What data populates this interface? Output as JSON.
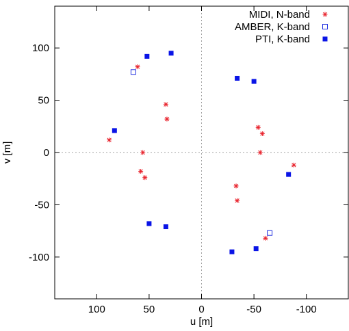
{
  "chart_data": {
    "type": "scatter",
    "xlabel": "u [m]",
    "ylabel": "v [m]",
    "xlim": [
      140,
      -140
    ],
    "ylim": [
      -140,
      140
    ],
    "xticks": [
      100,
      50,
      0,
      -50,
      -100
    ],
    "yticks": [
      100,
      50,
      0,
      -50,
      -100
    ],
    "zero_lines": true,
    "legend_position": "top-right",
    "series": [
      {
        "name": "MIDI, N-band",
        "marker": "asterisk",
        "color": "#e8202a",
        "points": [
          [
            61,
            82
          ],
          [
            -61,
            -82
          ],
          [
            34,
            46
          ],
          [
            -34,
            -46
          ],
          [
            33,
            32
          ],
          [
            -33,
            -32
          ],
          [
            -54,
            24
          ],
          [
            54,
            -24
          ],
          [
            -58,
            18
          ],
          [
            58,
            -18
          ],
          [
            88,
            12
          ],
          [
            -88,
            -12
          ],
          [
            56,
            0
          ],
          [
            -56,
            0
          ]
        ]
      },
      {
        "name": "AMBER, K-band",
        "marker": "open-square",
        "color": "#1f2ee0",
        "points": [
          [
            65,
            77
          ],
          [
            -65,
            -77
          ]
        ]
      },
      {
        "name": "PTI, K-band",
        "marker": "filled-square",
        "color": "#0a14e6",
        "points": [
          [
            52,
            92
          ],
          [
            -52,
            -92
          ],
          [
            29,
            95
          ],
          [
            -29,
            -95
          ],
          [
            -34,
            71
          ],
          [
            34,
            -71
          ],
          [
            -50,
            68
          ],
          [
            50,
            -68
          ],
          [
            83,
            21
          ],
          [
            -83,
            -21
          ]
        ]
      }
    ]
  }
}
